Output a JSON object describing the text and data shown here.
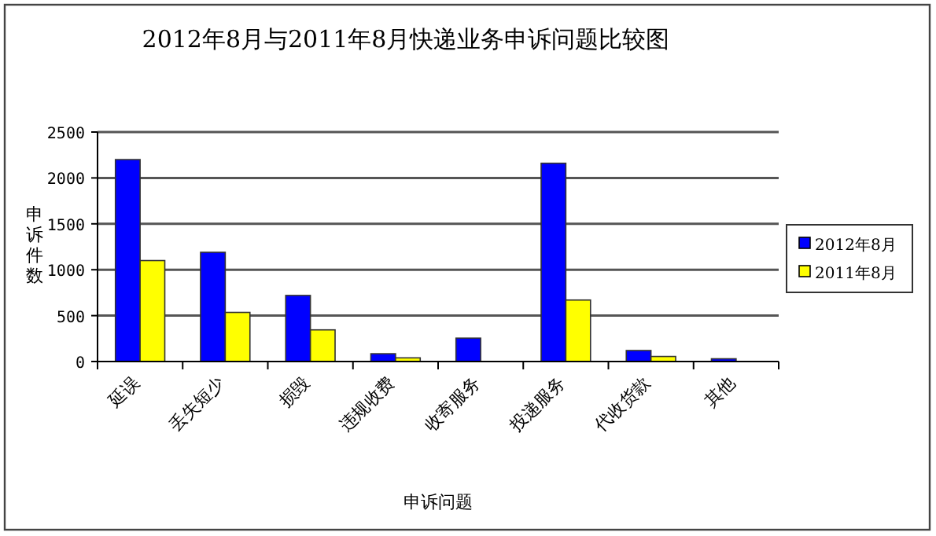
{
  "chart_data": {
    "type": "bar",
    "title": "2012年8月与2011年8月快递业务申诉问题比较图",
    "xlabel": "申诉问题",
    "ylabel": "申诉件数",
    "categories": [
      "延误",
      "丢失短少",
      "损毁",
      "违规收费",
      "收寄服务",
      "投递服务",
      "代收货款",
      "其他"
    ],
    "series": [
      {
        "name": "2012年8月",
        "color": "#0000ff",
        "values": [
          2200,
          1190,
          720,
          85,
          255,
          2160,
          120,
          30
        ]
      },
      {
        "name": "2011年8月",
        "color": "#ffff00",
        "values": [
          1100,
          535,
          345,
          40,
          0,
          670,
          55,
          0
        ]
      }
    ],
    "ylim": [
      0,
      2500
    ],
    "yticks": [
      0,
      500,
      1000,
      1500,
      2000,
      2500
    ],
    "grid": "y",
    "legend": "right"
  }
}
